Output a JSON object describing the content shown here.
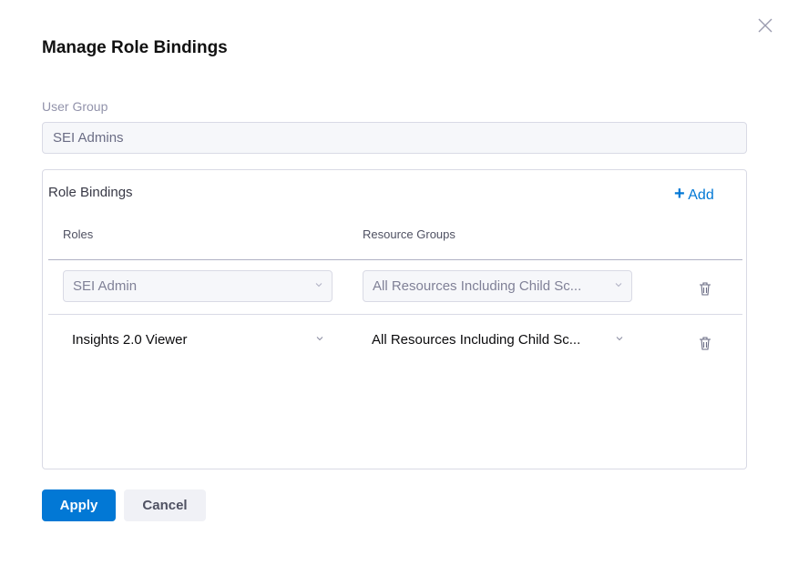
{
  "dialog": {
    "title": "Manage Role Bindings"
  },
  "user_group": {
    "label": "User Group",
    "value": "SEI Admins"
  },
  "role_bindings": {
    "title": "Role Bindings",
    "add_label": "Add",
    "columns": {
      "roles": "Roles",
      "resource_groups": "Resource Groups"
    },
    "rows": [
      {
        "role": "SEI Admin",
        "resource_group": "All Resources Including Child Sc...",
        "disabled": true
      },
      {
        "role": "Insights 2.0 Viewer",
        "resource_group": "All Resources Including Child Sc...",
        "disabled": false
      }
    ]
  },
  "footer": {
    "apply_label": "Apply",
    "cancel_label": "Cancel"
  },
  "colors": {
    "primary": "#0278d5",
    "border": "#d9dae5"
  }
}
